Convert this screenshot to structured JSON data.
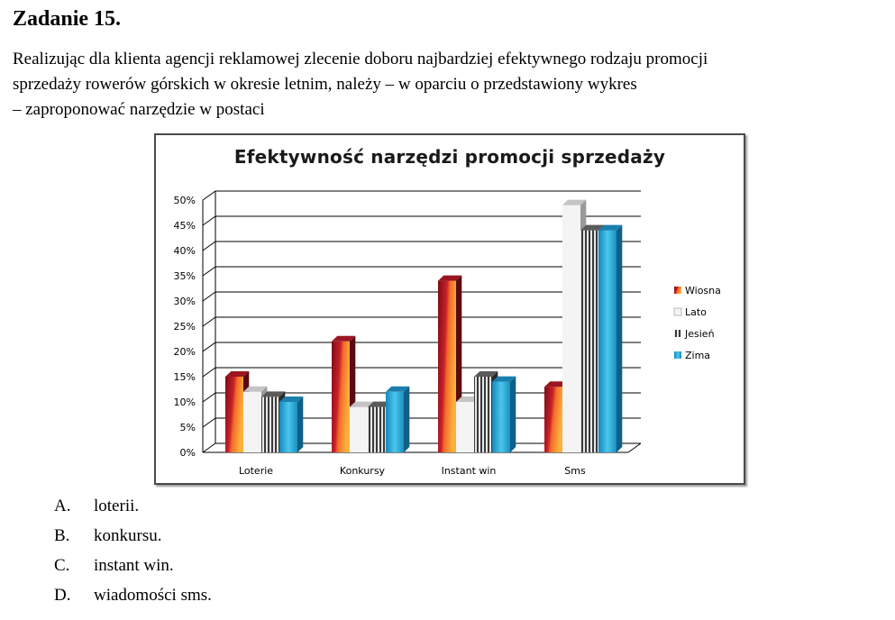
{
  "question": {
    "title": "Zadanie 15.",
    "lines": [
      "Realizując dla klienta agencji reklamowej zlecenie doboru najbardziej efektywnego rodzaju promocji",
      "sprzedaży rowerów górskich w okresie letnim, należy – w oparciu o przedstawiony wykres",
      "– zaproponować narzędzie w postaci"
    ]
  },
  "chart_data": {
    "type": "bar",
    "title": "Efektywność narzędzi promocji sprzedaży",
    "categories": [
      "Loterie",
      "Konkursy",
      "Instant win",
      "Sms"
    ],
    "series": [
      {
        "name": "Wiosna",
        "values": [
          15,
          22,
          34,
          13
        ]
      },
      {
        "name": "Lato",
        "values": [
          12,
          9,
          10,
          49
        ]
      },
      {
        "name": "Jesień",
        "values": [
          11,
          9,
          15,
          44
        ]
      },
      {
        "name": "Zima",
        "values": [
          10,
          12,
          14,
          44
        ]
      }
    ],
    "yticks": [
      "0%",
      "5%",
      "10%",
      "15%",
      "20%",
      "25%",
      "30%",
      "35%",
      "40%",
      "45%",
      "50%"
    ],
    "ylim": [
      0,
      50
    ],
    "xlabel": "",
    "ylabel": "",
    "grid": true,
    "legend_position": "right",
    "series_colors": [
      "#c0181c",
      "#d8d8d8",
      "#777777",
      "#29a9da"
    ]
  },
  "answers": [
    {
      "letter": "A.",
      "text": "loterii."
    },
    {
      "letter": "B.",
      "text": "konkursu."
    },
    {
      "letter": "C.",
      "text": "instant win."
    },
    {
      "letter": "D.",
      "text": "wiadomości sms."
    }
  ]
}
